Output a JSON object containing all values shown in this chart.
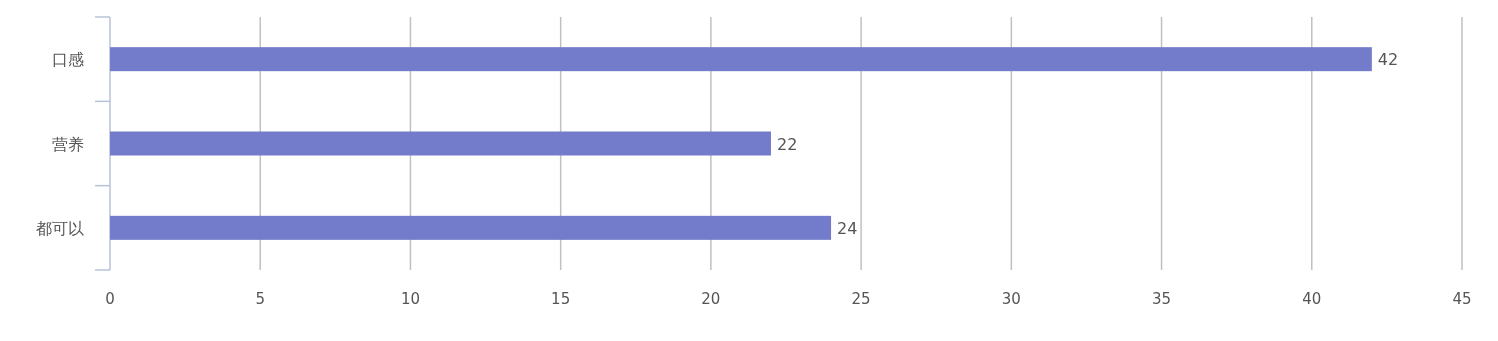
{
  "chart_data": {
    "type": "bar",
    "orientation": "horizontal",
    "categories": [
      "口感",
      "营养",
      "都可以"
    ],
    "values": [
      42,
      22,
      24
    ],
    "color": "#727cca",
    "xlim": [
      0,
      45
    ],
    "xticks": [
      0,
      5,
      10,
      15,
      20,
      25,
      30,
      35,
      40,
      45
    ],
    "grid": "x",
    "data_labels": true
  }
}
